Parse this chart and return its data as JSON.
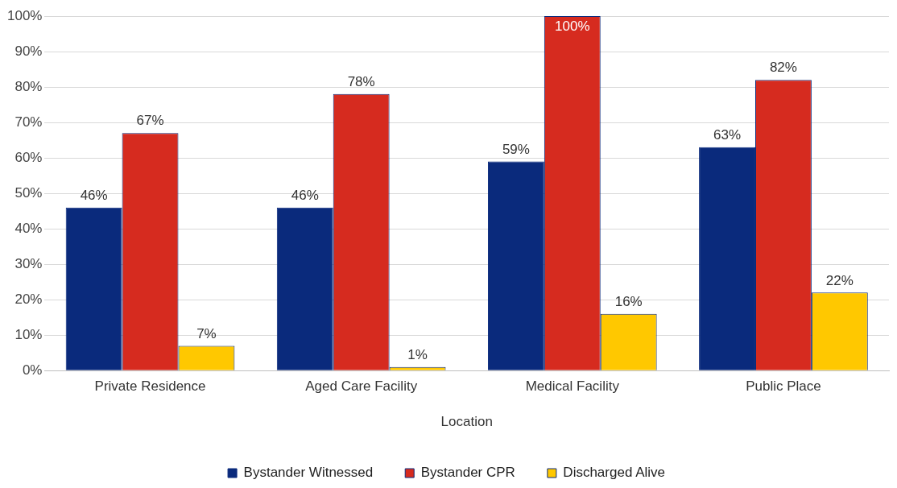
{
  "chart_data": {
    "type": "bar",
    "xlabel": "Location",
    "categories": [
      "Private Residence",
      "Aged Care Facility",
      "Medical Facility",
      "Public Place"
    ],
    "series": [
      {
        "name": "Bystander Witnessed",
        "color": "#0a2a7c",
        "values": [
          46,
          46,
          59,
          63
        ],
        "value_labels": [
          "46%",
          "46%",
          "59%",
          "63%"
        ]
      },
      {
        "name": "Bystander CPR",
        "color": "#d62b1f",
        "values": [
          67,
          78,
          100,
          82
        ],
        "value_labels": [
          "67%",
          "78%",
          "100%",
          "82%"
        ]
      },
      {
        "name": "Discharged Alive",
        "color": "#ffc800",
        "values": [
          7,
          1,
          16,
          22
        ],
        "value_labels": [
          "7%",
          "1%",
          "16%",
          "22%"
        ]
      }
    ],
    "ylim": [
      0,
      100
    ],
    "yticks": [
      {
        "value": 0,
        "label": "0%"
      },
      {
        "value": 10,
        "label": "10%"
      },
      {
        "value": 20,
        "label": "20%"
      },
      {
        "value": 30,
        "label": "30%"
      },
      {
        "value": 40,
        "label": "40%"
      },
      {
        "value": 50,
        "label": "50%"
      },
      {
        "value": 60,
        "label": "60%"
      },
      {
        "value": 70,
        "label": "70%"
      },
      {
        "value": 80,
        "label": "80%"
      },
      {
        "value": 90,
        "label": "90%"
      },
      {
        "value": 100,
        "label": "100%"
      }
    ],
    "grid": "y",
    "legend": "bottom"
  }
}
